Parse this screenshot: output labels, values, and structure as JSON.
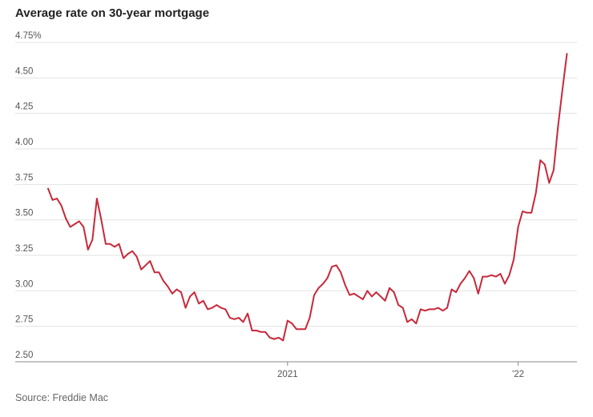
{
  "chart_data": {
    "type": "line",
    "title": "Average rate on 30-year mortgage",
    "source": "Source: Freddie Mac",
    "y_ticks": [
      "4.75%",
      "4.50",
      "4.25",
      "4.00",
      "3.75",
      "3.50",
      "3.25",
      "3.00",
      "2.75",
      "2.50"
    ],
    "ylim": [
      2.5,
      4.75
    ],
    "x_tick_labels": [
      {
        "label": "2021",
        "index": 54
      },
      {
        "label": "'22",
        "index": 106
      }
    ],
    "x_range": [
      0,
      118
    ],
    "grid": true,
    "color": "#c8283a",
    "series": [
      {
        "values": [
          3.72,
          3.64,
          3.65,
          3.6,
          3.51,
          3.45,
          3.47,
          3.49,
          3.45,
          3.29,
          3.36,
          3.65,
          3.5,
          3.33,
          3.33,
          3.31,
          3.33,
          3.23,
          3.26,
          3.28,
          3.24,
          3.15,
          3.18,
          3.21,
          3.13,
          3.13,
          3.07,
          3.03,
          2.98,
          3.01,
          2.99,
          2.88,
          2.96,
          2.99,
          2.91,
          2.93,
          2.87,
          2.88,
          2.9,
          2.88,
          2.87,
          2.81,
          2.8,
          2.81,
          2.78,
          2.84,
          2.72,
          2.72,
          2.71,
          2.71,
          2.67,
          2.66,
          2.67,
          2.65,
          2.79,
          2.77,
          2.73,
          2.73,
          2.73,
          2.81,
          2.97,
          3.02,
          3.05,
          3.09,
          3.17,
          3.18,
          3.13,
          3.04,
          2.97,
          2.98,
          2.96,
          2.94,
          3.0,
          2.96,
          2.99,
          2.96,
          2.93,
          3.02,
          2.99,
          2.9,
          2.88,
          2.78,
          2.8,
          2.77,
          2.87,
          2.86,
          2.87,
          2.87,
          2.88,
          2.86,
          2.88,
          3.01,
          2.99,
          3.05,
          3.09,
          3.14,
          3.09,
          2.98,
          3.1,
          3.1,
          3.11,
          3.1,
          3.12,
          3.05,
          3.11,
          3.22,
          3.45,
          3.56,
          3.55,
          3.55,
          3.69,
          3.92,
          3.89,
          3.76,
          3.85,
          4.16,
          4.42,
          4.67
        ]
      }
    ]
  }
}
